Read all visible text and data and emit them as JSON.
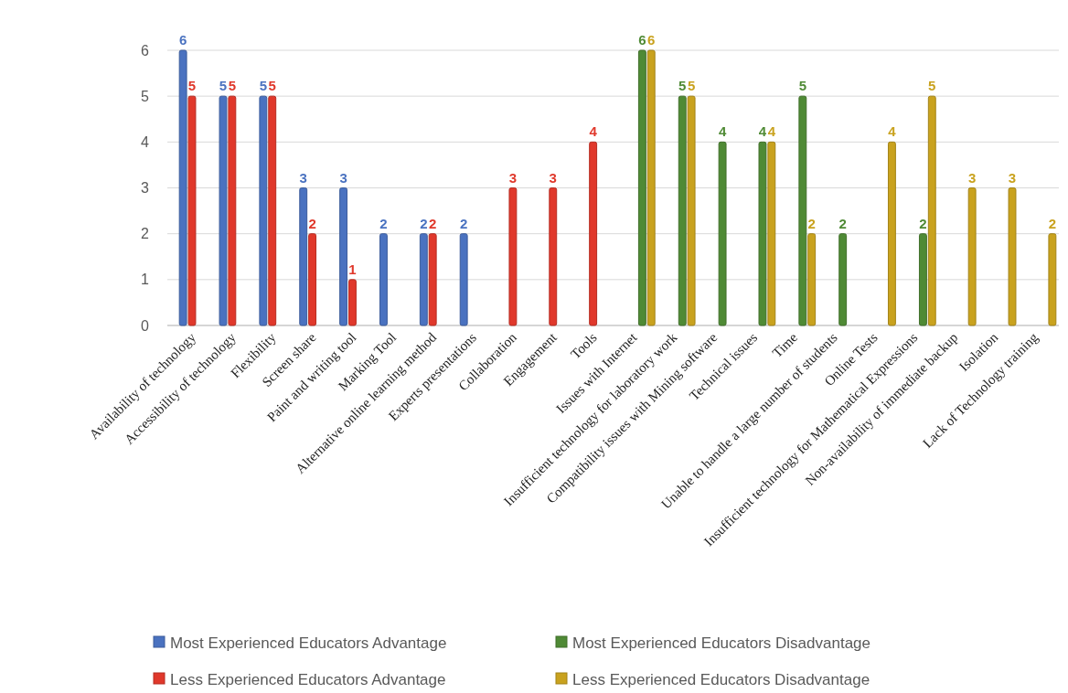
{
  "chart_data": {
    "type": "bar",
    "categories": [
      "Availability of technology",
      "Accessibility of technology",
      "Flexibility",
      "Screen share",
      "Paint and writing tool",
      "Marking Tool",
      "Alternative online learning method",
      "Experts presentations",
      "Collaboration",
      "Engagement",
      "Tools",
      "Issues with Internet",
      "Insufficient technology  for laboratory work",
      "Compatibility issues with Mining software",
      "Technical issues",
      "Time",
      "Unable to handle a large number of students",
      "Online Tests",
      "Insufficient technology for Mathematical Expressions",
      "Non-availability of immediate backup",
      "Isolation",
      "Lack of Technology training"
    ],
    "series": [
      {
        "name": "Most Experienced Educators Advantage",
        "color": "#4a72c0",
        "values": [
          6,
          5,
          5,
          3,
          3,
          2,
          2,
          2,
          null,
          null,
          null,
          null,
          null,
          null,
          null,
          null,
          null,
          null,
          null,
          null,
          null,
          null
        ]
      },
      {
        "name": "Less Experienced Educators Advantage",
        "color": "#e0382b",
        "values": [
          5,
          5,
          5,
          2,
          1,
          null,
          2,
          null,
          3,
          3,
          4,
          null,
          null,
          null,
          null,
          null,
          null,
          null,
          null,
          null,
          null,
          null
        ]
      },
      {
        "name": "Most Experienced Educators Disadvantage",
        "color": "#4f8a35",
        "values": [
          null,
          null,
          null,
          null,
          null,
          null,
          null,
          null,
          null,
          null,
          null,
          6,
          5,
          4,
          4,
          5,
          2,
          null,
          2,
          null,
          null,
          null
        ]
      },
      {
        "name": "Less Experienced Educators Disadvantage",
        "color": "#c9a21e",
        "values": [
          null,
          null,
          null,
          null,
          null,
          null,
          null,
          null,
          null,
          null,
          null,
          6,
          5,
          null,
          4,
          2,
          null,
          4,
          5,
          3,
          3,
          2
        ]
      }
    ],
    "ylim": [
      0,
      6
    ],
    "yticks": [
      0,
      1,
      2,
      3,
      4,
      5,
      6
    ],
    "grid": "y",
    "legend": "bottom",
    "data_labels": true
  }
}
